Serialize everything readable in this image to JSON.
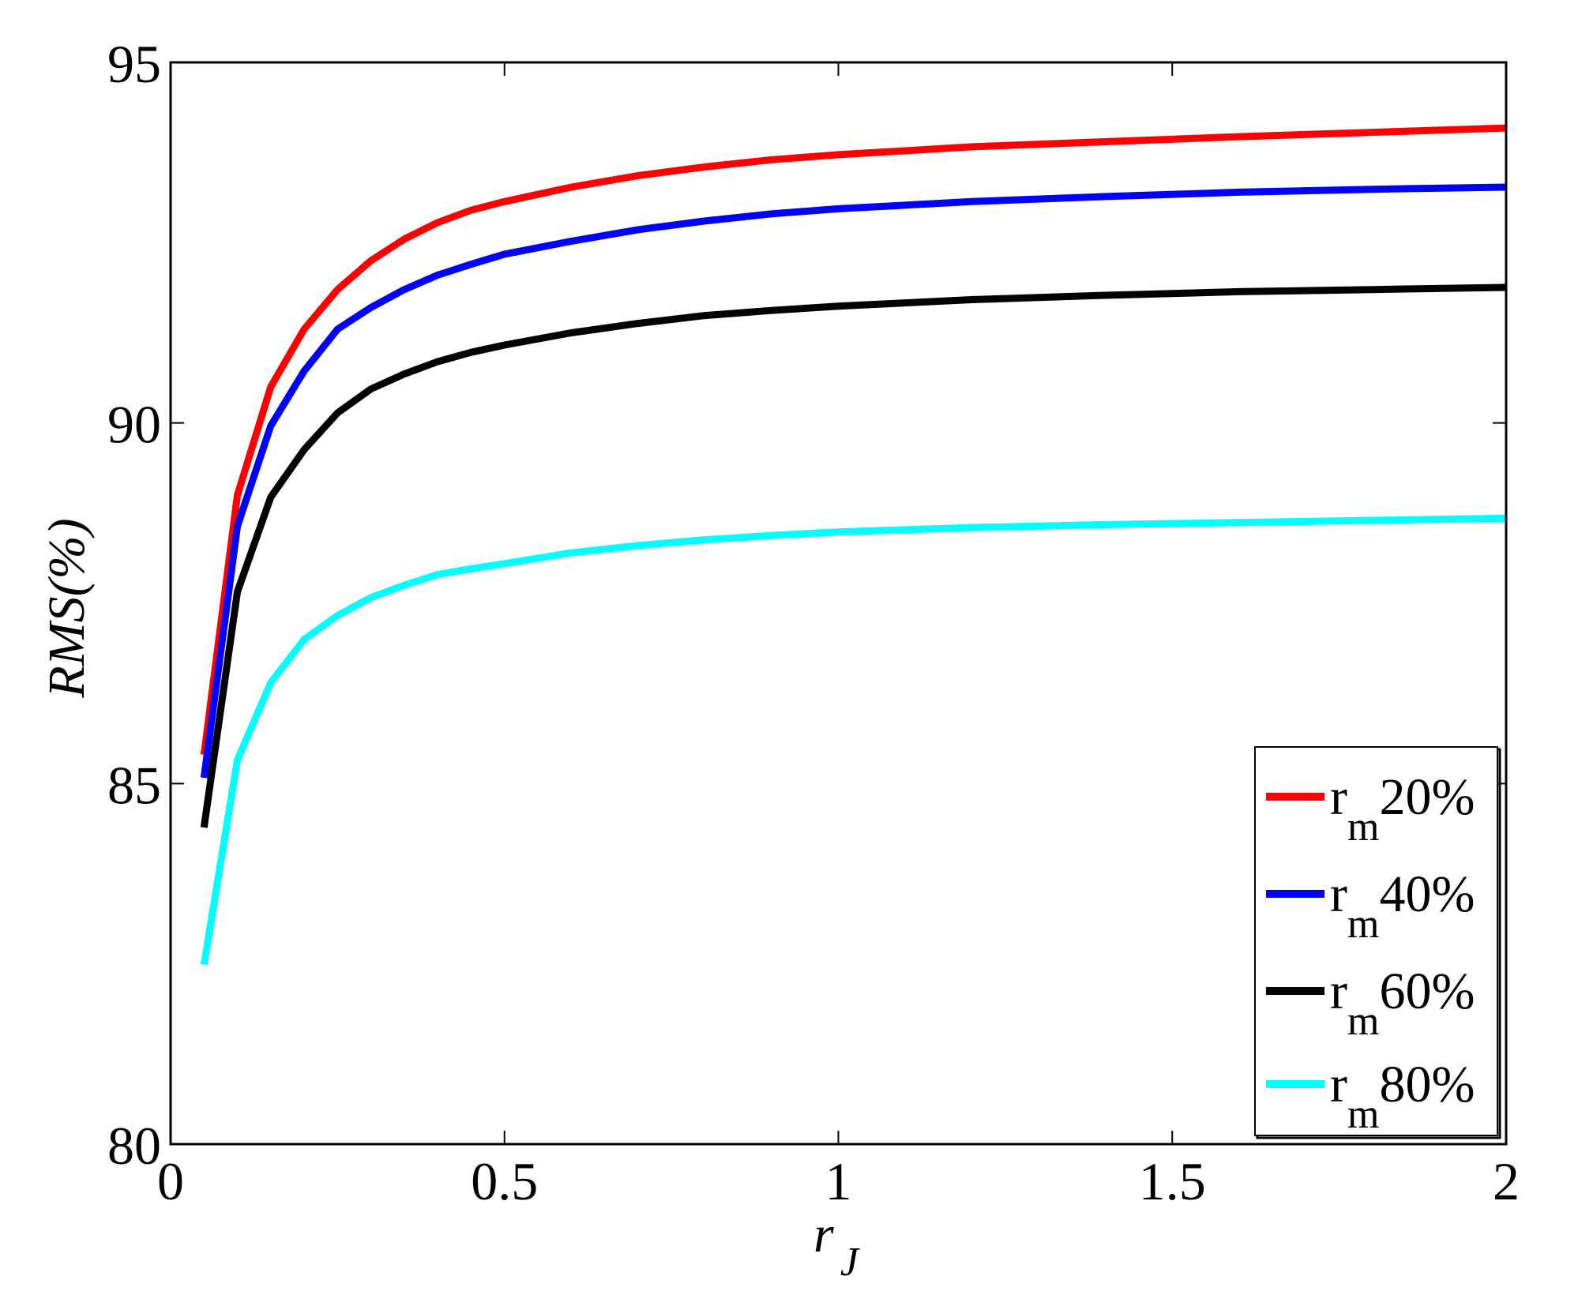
{
  "chart_data": {
    "type": "line",
    "title": "",
    "xlabel": "r_J",
    "xlabel_main": "r",
    "xlabel_sub": "J",
    "ylabel": "RMS(%)",
    "xlim": [
      0,
      2
    ],
    "ylim": [
      80,
      95
    ],
    "grid": false,
    "legend_position": "lower right",
    "xticks": [
      0,
      0.5,
      1,
      1.5,
      2
    ],
    "xtick_labels": [
      "0",
      "0.5",
      "1",
      "1.5",
      "2"
    ],
    "yticks": [
      80,
      85,
      90,
      95
    ],
    "ytick_labels": [
      "80",
      "85",
      "90",
      "95"
    ],
    "x": [
      0.05,
      0.1,
      0.15,
      0.2,
      0.25,
      0.3,
      0.35,
      0.4,
      0.45,
      0.5,
      0.6,
      0.7,
      0.8,
      0.9,
      1.0,
      1.2,
      1.4,
      1.6,
      1.8,
      2.0
    ],
    "series": [
      {
        "name": "r_m 20%",
        "label_main": "r",
        "label_sub": "m",
        "label_suffix": "20%",
        "color": "#ff0000",
        "values": [
          85.4,
          89.0,
          90.5,
          91.3,
          91.85,
          92.25,
          92.55,
          92.78,
          92.95,
          93.07,
          93.27,
          93.43,
          93.55,
          93.65,
          93.72,
          93.83,
          93.9,
          93.97,
          94.03,
          94.09
        ]
      },
      {
        "name": "r_m 40%",
        "label_main": "r",
        "label_sub": "m",
        "label_suffix": "40%",
        "color": "#0000ff",
        "values": [
          85.08,
          88.57,
          89.96,
          90.72,
          91.3,
          91.6,
          91.85,
          92.05,
          92.2,
          92.34,
          92.52,
          92.68,
          92.8,
          92.9,
          92.97,
          93.07,
          93.14,
          93.2,
          93.24,
          93.27
        ]
      },
      {
        "name": "r_m 60%",
        "label_main": "r",
        "label_sub": "m",
        "label_suffix": "60%",
        "color": "#000000",
        "values": [
          84.39,
          87.66,
          88.97,
          89.63,
          90.14,
          90.47,
          90.68,
          90.85,
          90.98,
          91.08,
          91.25,
          91.38,
          91.49,
          91.56,
          91.62,
          91.71,
          91.77,
          91.82,
          91.85,
          91.88
        ]
      },
      {
        "name": "r_m 80%",
        "label_main": "r",
        "label_sub": "m",
        "label_suffix": "80%",
        "color": "#00ffff",
        "values": [
          82.49,
          85.33,
          86.4,
          87.0,
          87.33,
          87.58,
          87.75,
          87.9,
          87.98,
          88.05,
          88.2,
          88.3,
          88.38,
          88.44,
          88.49,
          88.55,
          88.59,
          88.62,
          88.65,
          88.68
        ]
      }
    ]
  }
}
